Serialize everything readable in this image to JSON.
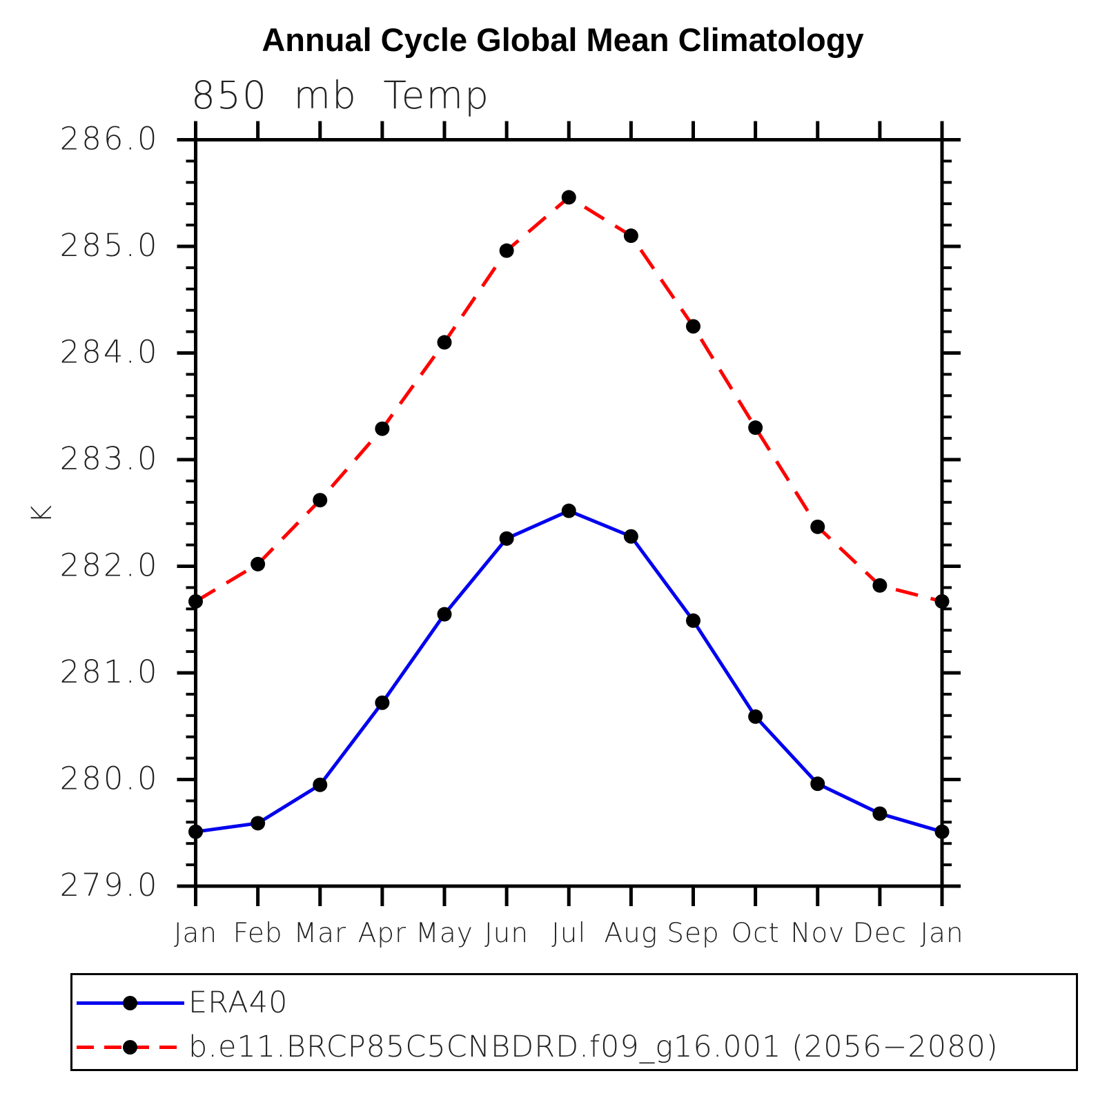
{
  "chart_data": {
    "type": "line",
    "title": "Annual Cycle Global Mean Climatology",
    "subtitle": "850 mb Temp",
    "ylabel": "K",
    "ylim": [
      279.0,
      286.0
    ],
    "ytick_major_step": 1.0,
    "ytick_minor_step": 0.2,
    "ytick_labels": [
      "279.0",
      "280.0",
      "281.0",
      "282.0",
      "283.0",
      "284.0",
      "285.0",
      "286.0"
    ],
    "categories": [
      "Jan",
      "Feb",
      "Mar",
      "Apr",
      "May",
      "Jun",
      "Jul",
      "Aug",
      "Sep",
      "Oct",
      "Nov",
      "Dec",
      "Jan"
    ],
    "grid": false,
    "legend_position": "bottom-left",
    "marker": {
      "shape": "circle",
      "color": "#000000"
    },
    "series": [
      {
        "name": "ERA40",
        "color": "#0000ee",
        "line_style": "solid",
        "values": [
          279.51,
          279.59,
          279.95,
          280.72,
          281.55,
          282.26,
          282.52,
          282.28,
          281.49,
          280.59,
          279.96,
          279.68,
          279.51
        ]
      },
      {
        "name": "b.e11.BRCP85C5CNBDRD.f09_g16.001 (2056−2080)",
        "color": "#ff0000",
        "line_style": "dashed",
        "values": [
          281.67,
          282.02,
          282.62,
          283.29,
          284.1,
          284.96,
          285.46,
          285.1,
          284.25,
          283.3,
          282.37,
          281.82,
          281.67
        ]
      }
    ]
  }
}
